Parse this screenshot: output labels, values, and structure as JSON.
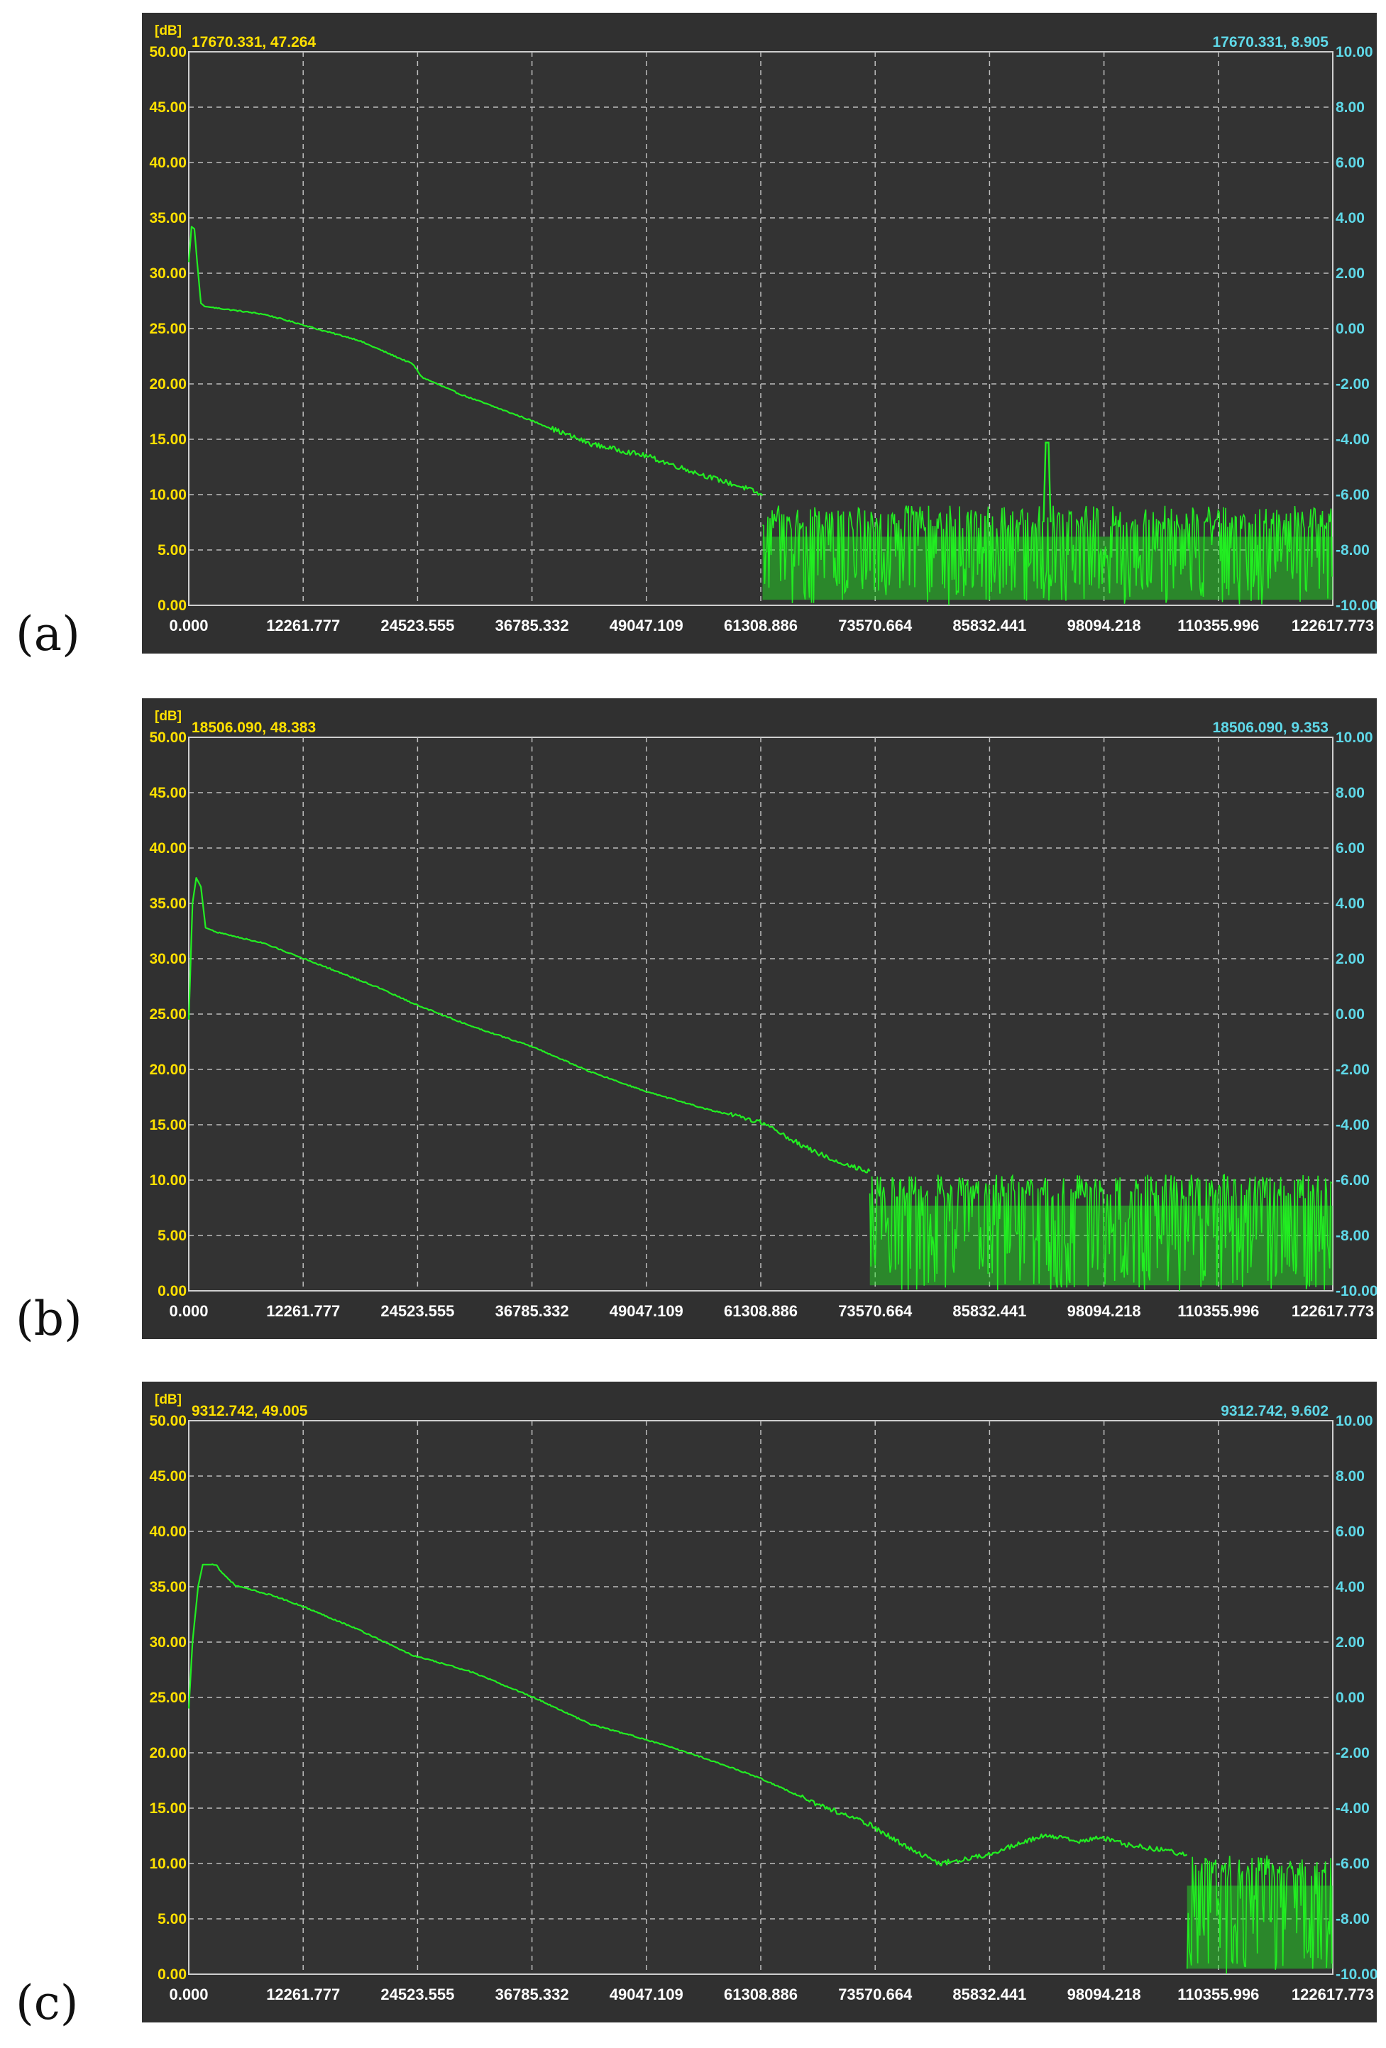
{
  "chart_data": [
    {
      "panel_label": "(a)",
      "type": "line",
      "unit_label": "[dB]",
      "readout_left": "17670.331, 47.264",
      "readout_right": "17670.331, 8.905",
      "y_left_ticks": [
        "0.00",
        "5.00",
        "10.00",
        "15.00",
        "20.00",
        "25.00",
        "30.00",
        "35.00",
        "40.00",
        "45.00",
        "50.00"
      ],
      "y_right_ticks": [
        "-10.00",
        "-8.00",
        "-6.00",
        "-4.00",
        "-2.00",
        "0.00",
        "2.00",
        "4.00",
        "6.00",
        "8.00",
        "10.00"
      ],
      "x_ticks": [
        "0.000",
        "12261.777",
        "24523.555",
        "36785.332",
        "49047.109",
        "61308.886",
        "73570.664",
        "85832.441",
        "98094.218",
        "110355.996",
        "122617.773"
      ],
      "xlim": [
        0,
        122617.773
      ],
      "ylim": [
        0,
        50
      ],
      "y_right_lim": [
        -10,
        10
      ],
      "grid": true,
      "line_color": "#22ee22",
      "x": [
        0,
        300,
        600,
        900,
        1300,
        1700,
        8000,
        12000,
        14000,
        18000,
        24000,
        25000,
        29000,
        37000,
        43000,
        49000,
        55000,
        60000,
        61500
      ],
      "y": [
        31.0,
        34.2,
        34.0,
        31.0,
        27.3,
        27.0,
        26.3,
        25.4,
        24.9,
        24.0,
        21.8,
        20.6,
        19.1,
        16.6,
        14.6,
        13.5,
        11.8,
        10.5,
        9.9
      ],
      "noise_floor": {
        "x_start": 61500,
        "x_end": 122617.773,
        "upper": 8.0,
        "lower": 0.0
      },
      "spike": {
        "x": 92000,
        "y": 14.7
      }
    },
    {
      "panel_label": "(b)",
      "type": "line",
      "unit_label": "[dB]",
      "readout_left": "18506.090, 48.383",
      "readout_right": "18506.090, 9.353",
      "y_left_ticks": [
        "0.00",
        "5.00",
        "10.00",
        "15.00",
        "20.00",
        "25.00",
        "30.00",
        "35.00",
        "40.00",
        "45.00",
        "50.00"
      ],
      "y_right_ticks": [
        "-10.00",
        "-8.00",
        "-6.00",
        "-4.00",
        "-2.00",
        "0.00",
        "2.00",
        "4.00",
        "6.00",
        "8.00",
        "10.00"
      ],
      "x_ticks": [
        "0.000",
        "12261.777",
        "24523.555",
        "36785.332",
        "49047.109",
        "61308.886",
        "73570.664",
        "85832.441",
        "98094.218",
        "110355.996",
        "122617.773"
      ],
      "xlim": [
        0,
        122617.773
      ],
      "ylim": [
        0,
        50
      ],
      "y_right_lim": [
        -10,
        10
      ],
      "grid": true,
      "line_color": "#22ee22",
      "x": [
        0,
        400,
        800,
        1300,
        1800,
        3000,
        8000,
        13000,
        20000,
        24500,
        30000,
        37000,
        43000,
        49000,
        56000,
        61500,
        66000,
        70000,
        73000
      ],
      "y": [
        24.5,
        35.0,
        37.3,
        36.5,
        32.8,
        32.4,
        31.4,
        29.8,
        27.5,
        25.8,
        24.0,
        22.0,
        19.8,
        18.0,
        16.3,
        15.2,
        13.0,
        11.5,
        10.8
      ],
      "noise_floor": {
        "x_start": 73000,
        "x_end": 122617.773,
        "upper": 9.5,
        "lower": 0.0
      },
      "spike": null
    },
    {
      "panel_label": "(c)",
      "type": "line",
      "unit_label": "[dB]",
      "readout_left": "9312.742, 49.005",
      "readout_right": "9312.742, 9.602",
      "y_left_ticks": [
        "0.00",
        "5.00",
        "10.00",
        "15.00",
        "20.00",
        "25.00",
        "30.00",
        "35.00",
        "40.00",
        "45.00",
        "50.00"
      ],
      "y_right_ticks": [
        "-10.00",
        "-8.00",
        "-6.00",
        "-4.00",
        "-2.00",
        "0.00",
        "2.00",
        "4.00",
        "6.00",
        "8.00",
        "10.00"
      ],
      "x_ticks": [
        "0.000",
        "12261.777",
        "24523.555",
        "36785.332",
        "49047.109",
        "61308.886",
        "73570.664",
        "85832.441",
        "98094.218",
        "110355.996",
        "122617.773"
      ],
      "xlim": [
        0,
        122617.773
      ],
      "ylim": [
        0,
        50
      ],
      "y_right_lim": [
        -10,
        10
      ],
      "grid": true,
      "line_color": "#22ee22",
      "x": [
        0,
        400,
        1000,
        1500,
        3000,
        3300,
        5000,
        9000,
        12000,
        18000,
        24000,
        30000,
        37000,
        43000,
        49000,
        55000,
        61000,
        67000,
        73000,
        78000,
        80500,
        85000,
        88000,
        92000,
        95000,
        98000,
        100000,
        103000,
        107000
      ],
      "y": [
        24.0,
        30.0,
        35.0,
        37.0,
        37.0,
        36.5,
        35.1,
        34.2,
        33.3,
        31.2,
        28.8,
        27.4,
        25.0,
        22.6,
        21.2,
        19.6,
        17.8,
        15.5,
        13.5,
        11.0,
        10.0,
        10.7,
        11.5,
        12.6,
        12.0,
        12.3,
        11.8,
        11.4,
        10.8
      ],
      "noise_floor": {
        "x_start": 107000,
        "x_end": 122617.773,
        "upper": 9.8,
        "lower": 0.0
      },
      "spike": null
    }
  ]
}
